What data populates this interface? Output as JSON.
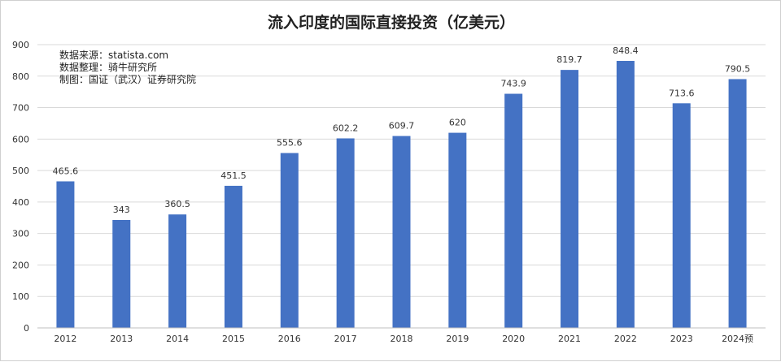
{
  "chart_data": {
    "type": "bar",
    "title": "流入印度的国际直接投资（亿美元）",
    "categories": [
      "2012",
      "2013",
      "2014",
      "2015",
      "2016",
      "2017",
      "2018",
      "2019",
      "2020",
      "2021",
      "2022",
      "2023",
      "2024预"
    ],
    "values": [
      465.6,
      343,
      360.5,
      451.5,
      555.6,
      602.2,
      609.7,
      620,
      743.9,
      819.7,
      848.4,
      713.6,
      790.5
    ],
    "value_labels": [
      "465.6",
      "343",
      "360.5",
      "451.5",
      "555.6",
      "602.2",
      "609.7",
      "620",
      "743.9",
      "819.7",
      "848.4",
      "713.6",
      "790.5"
    ],
    "ylim": [
      0,
      900
    ],
    "yticks": [
      "0",
      "100",
      "200",
      "300",
      "400",
      "500",
      "600",
      "700",
      "800",
      "900"
    ],
    "grid": true,
    "legend": "none",
    "bar_color": "#4472C4",
    "annotations": [
      "数据来源：statista.com",
      "数据整理：骑牛研究所",
      "制图：国证（武汉）证券研究院"
    ]
  }
}
